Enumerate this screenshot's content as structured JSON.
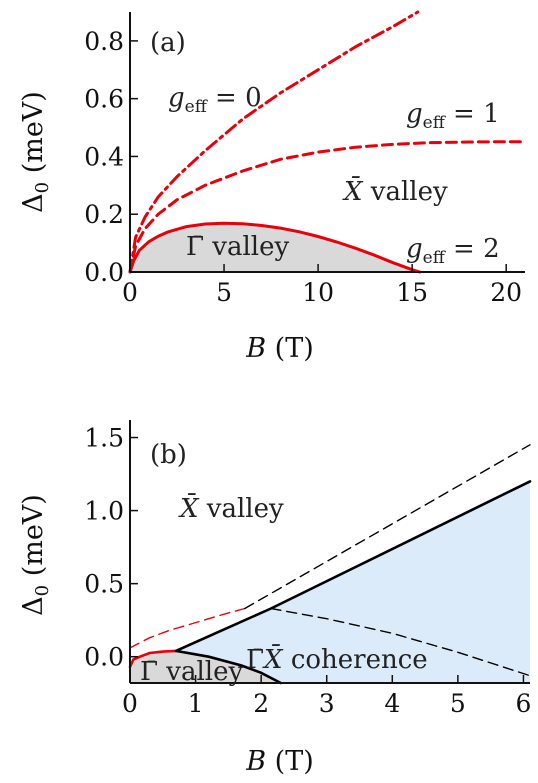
{
  "chart_data": [
    {
      "type": "line",
      "panel_label": "(a)",
      "xlabel": "B (T)",
      "ylabel": "Δ0 (meV)",
      "xlim": [
        0,
        21
      ],
      "ylim": [
        0,
        0.9
      ],
      "xticks": [
        0,
        5,
        10,
        15,
        20
      ],
      "yticks": [
        0.0,
        0.2,
        0.4,
        0.6,
        0.8
      ],
      "xtick_labels": [
        "0",
        "5",
        "10",
        "15",
        "20"
      ],
      "ytick_labels": [
        "0.0",
        "0.2",
        "0.4",
        "0.6",
        "0.8"
      ],
      "series": [
        {
          "name": "g_eff = 0",
          "style": "dash-dot",
          "color": "#e8000b",
          "x": [
            0,
            0.3,
            0.8,
            1.5,
            2.5,
            4,
            6,
            8,
            10,
            12,
            14,
            15.3
          ],
          "y": [
            0,
            0.12,
            0.19,
            0.26,
            0.33,
            0.42,
            0.53,
            0.62,
            0.7,
            0.78,
            0.85,
            0.9
          ]
        },
        {
          "name": "g_eff = 1",
          "style": "dashed",
          "color": "#e8000b",
          "x": [
            0,
            0.3,
            0.8,
            1.5,
            2.5,
            4,
            6,
            8,
            10,
            12,
            14,
            16,
            18,
            20,
            21
          ],
          "y": [
            0,
            0.09,
            0.15,
            0.2,
            0.25,
            0.3,
            0.35,
            0.39,
            0.415,
            0.432,
            0.442,
            0.448,
            0.45,
            0.451,
            0.451
          ]
        },
        {
          "name": "g_eff = 2",
          "style": "solid",
          "color": "#e8000b",
          "x": [
            0,
            0.2,
            0.5,
            1,
            1.5,
            2,
            3,
            4,
            5,
            6,
            7,
            8,
            9,
            10,
            11,
            12,
            13,
            14,
            15,
            15.4
          ],
          "y": [
            0,
            0.04,
            0.075,
            0.105,
            0.124,
            0.138,
            0.157,
            0.166,
            0.169,
            0.167,
            0.161,
            0.152,
            0.139,
            0.123,
            0.104,
            0.082,
            0.058,
            0.032,
            0.008,
            0
          ]
        }
      ],
      "shaded_region": {
        "name": "Γ̄ valley",
        "color": "#d9d9d9",
        "boundary_series": "g_eff = 2"
      },
      "annotations": [
        {
          "text": "g_eff = 0",
          "x": 4.2,
          "y": 0.68
        },
        {
          "text": "g_eff = 1",
          "x": 17.7,
          "y": 0.59
        },
        {
          "text": "X̄ valley",
          "x": 13.7,
          "y": 0.34
        },
        {
          "text": "Γ̄ valley",
          "x": 5.1,
          "y": 0.085
        },
        {
          "text": "g_eff = 2",
          "x": 17.5,
          "y": 0.09
        }
      ]
    },
    {
      "type": "line",
      "panel_label": "(b)",
      "xlabel": "B (T)",
      "ylabel": "Δ0 (meV)",
      "xlim": [
        0,
        6.1
      ],
      "ylim": [
        -0.18,
        1.62
      ],
      "xticks": [
        0,
        1,
        2,
        3,
        4,
        5,
        6
      ],
      "yticks": [
        0.0,
        0.5,
        1.0,
        1.5
      ],
      "xtick_labels": [
        "0",
        "1",
        "2",
        "3",
        "4",
        "5",
        "6"
      ],
      "ytick_labels": [
        "0.0",
        "0.5",
        "1.0",
        "1.5"
      ],
      "series": [
        {
          "name": "Γ̄ valley boundary (red solid)",
          "style": "solid",
          "color": "#e8000b",
          "x": [
            0,
            0.05,
            0.15,
            0.3,
            0.5,
            0.7
          ],
          "y": [
            -0.07,
            -0.02,
            0.0,
            0.025,
            0.035,
            0.04
          ]
        },
        {
          "name": "red dashed",
          "style": "dashed",
          "color": "#e8000b",
          "x": [
            0,
            0.3,
            0.6,
            0.9,
            1.2,
            1.5,
            1.75
          ],
          "y": [
            0.06,
            0.13,
            0.18,
            0.22,
            0.26,
            0.3,
            0.33
          ]
        },
        {
          "name": "upper coherence boundary",
          "style": "solid",
          "color": "#000000",
          "x": [
            0.7,
            2.15,
            6.1
          ],
          "y": [
            0.04,
            0.33,
            1.2
          ]
        },
        {
          "name": "lower coherence boundary",
          "style": "solid",
          "color": "#000000",
          "x": [
            0.7,
            1.2,
            1.7,
            2.0,
            2.3
          ],
          "y": [
            0.04,
            0.0,
            -0.06,
            -0.11,
            -0.18
          ]
        },
        {
          "name": "upper dashed",
          "style": "dashed",
          "color": "#000000",
          "x": [
            1.75,
            6.1
          ],
          "y": [
            0.33,
            1.45
          ]
        },
        {
          "name": "lower dashed",
          "style": "dashed",
          "color": "#000000",
          "x": [
            2.15,
            3,
            4,
            5,
            6.1
          ],
          "y": [
            0.33,
            0.26,
            0.16,
            0.03,
            -0.13
          ]
        }
      ],
      "shaded_regions": [
        {
          "name": "Γ̄ X̄ coherence",
          "color": "#dcebfa"
        },
        {
          "name": "Γ̄ valley",
          "color": "#d9d9d9"
        }
      ],
      "annotations": [
        {
          "text": "X̄ valley",
          "x": 1.2,
          "y": 1.0
        },
        {
          "text": "Γ̄X̄ coherence",
          "x": 3.15,
          "y": -0.05
        },
        {
          "text": "Γ̄ valley",
          "x": 0.45,
          "y": -0.13
        }
      ]
    }
  ]
}
